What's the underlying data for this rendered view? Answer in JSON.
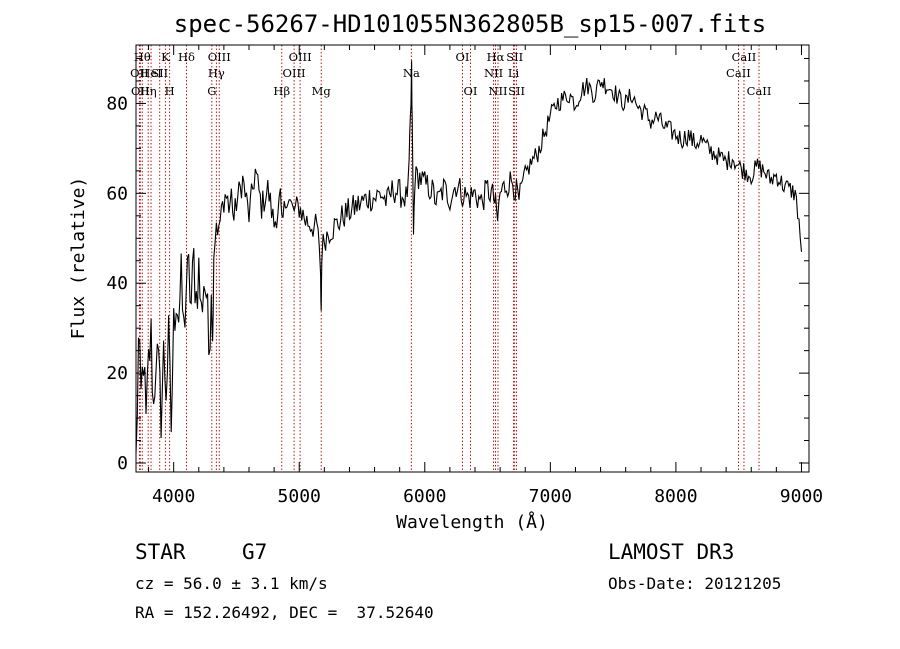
{
  "chart_data": {
    "type": "line",
    "title": "spec-56267-HD101055N362805B_sp15-007.fits",
    "xlabel": "Wavelength (Å)",
    "ylabel": "Flux (relative)",
    "xlim": [
      3700,
      9060
    ],
    "ylim": [
      -2,
      93
    ],
    "xticks": [
      4000,
      5000,
      6000,
      7000,
      8000,
      9000
    ],
    "yticks": [
      0,
      20,
      40,
      60,
      80
    ],
    "xtick_labels": [
      "4000",
      "5000",
      "6000",
      "7000",
      "8000",
      "9000"
    ],
    "ytick_labels": [
      "0",
      "20",
      "40",
      "60",
      "80"
    ],
    "series": [
      {
        "name": "spectrum",
        "x": [
          3700,
          3720,
          3740,
          3760,
          3780,
          3800,
          3820,
          3840,
          3860,
          3880,
          3900,
          3920,
          3940,
          3960,
          3980,
          4000,
          4020,
          4040,
          4060,
          4080,
          4100,
          4120,
          4140,
          4160,
          4180,
          4200,
          4220,
          4240,
          4260,
          4280,
          4300,
          4310,
          4320,
          4340,
          4360,
          4380,
          4400,
          4420,
          4440,
          4460,
          4480,
          4500,
          4550,
          4600,
          4650,
          4700,
          4750,
          4800,
          4850,
          4861,
          4900,
          4950,
          5000,
          5050,
          5100,
          5150,
          5170,
          5175,
          5180,
          5200,
          5250,
          5300,
          5350,
          5400,
          5450,
          5500,
          5550,
          5600,
          5650,
          5700,
          5750,
          5800,
          5850,
          5870,
          5880,
          5890,
          5895,
          5900,
          5910,
          5920,
          5950,
          6000,
          6050,
          6100,
          6150,
          6200,
          6250,
          6300,
          6350,
          6400,
          6450,
          6500,
          6550,
          6563,
          6580,
          6600,
          6650,
          6700,
          6750,
          6800,
          6850,
          6900,
          6950,
          7000,
          7050,
          7100,
          7150,
          7200,
          7250,
          7300,
          7350,
          7400,
          7450,
          7500,
          7550,
          7600,
          7650,
          7700,
          7750,
          7800,
          7850,
          7900,
          7950,
          8000,
          8050,
          8100,
          8150,
          8200,
          8250,
          8300,
          8350,
          8400,
          8450,
          8500,
          8550,
          8600,
          8650,
          8700,
          8750,
          8800,
          8850,
          8900,
          8950,
          8980,
          9000
        ],
        "y": [
          0,
          26,
          14,
          24,
          8,
          22,
          28,
          12,
          25,
          20,
          11,
          24,
          17,
          27,
          8,
          30,
          38,
          33,
          40,
          29,
          39,
          42,
          35,
          45,
          37,
          43,
          33,
          41,
          38,
          25,
          39,
          26,
          47,
          54,
          51,
          57,
          55,
          62,
          56,
          60,
          54,
          58,
          63,
          55,
          65,
          57,
          61,
          53,
          59,
          52,
          60,
          56,
          57,
          54,
          53,
          52,
          40,
          34,
          47,
          50,
          52,
          53,
          55,
          56,
          57,
          58,
          59,
          59,
          60,
          58,
          61,
          60,
          59,
          62,
          70,
          80,
          87,
          75,
          50,
          63,
          64,
          62,
          61,
          58,
          61,
          59,
          62,
          60,
          59,
          60,
          58,
          61,
          59,
          57,
          54,
          60,
          62,
          63,
          58,
          64,
          67,
          69,
          73,
          77,
          80,
          81,
          82,
          80,
          83,
          84,
          82,
          85,
          84,
          83,
          81,
          80,
          82,
          79,
          78,
          76,
          77,
          75,
          74,
          73,
          72,
          73,
          71,
          72,
          70,
          69,
          68,
          67,
          68,
          66,
          65,
          64,
          66,
          65,
          63,
          64,
          62,
          61,
          60,
          54,
          47
        ]
      }
    ],
    "lines": [
      {
        "x": 3727,
        "label": "OII",
        "row": 2
      },
      {
        "x": 3734,
        "label": "OII",
        "row": 3
      },
      {
        "x": 3750,
        "label": "Hθ",
        "row": 1
      },
      {
        "x": 3797,
        "label": "Hη",
        "row": 3
      },
      {
        "x": 3820,
        "label": "HeI",
        "row": 2
      },
      {
        "x": 3889,
        "label": "SII",
        "row": 2
      },
      {
        "x": 3934,
        "label": "K",
        "row": 1
      },
      {
        "x": 3968,
        "label": "H",
        "row": 3
      },
      {
        "x": 4102,
        "label": "Hδ",
        "row": 1
      },
      {
        "x": 4340,
        "label": "Hγ",
        "row": 2
      },
      {
        "x": 4304,
        "label": "G",
        "row": 3
      },
      {
        "x": 4363,
        "label": "OIII",
        "row": 1
      },
      {
        "x": 4861,
        "label": "Hβ",
        "row": 3
      },
      {
        "x": 4959,
        "label": "OIII",
        "row": 2
      },
      {
        "x": 5007,
        "label": "OIII",
        "row": 1
      },
      {
        "x": 5175,
        "label": "Mg",
        "row": 3
      },
      {
        "x": 5893,
        "label": "Na",
        "row": 2
      },
      {
        "x": 6300,
        "label": "OI",
        "row": 1
      },
      {
        "x": 6364,
        "label": "OI",
        "row": 3
      },
      {
        "x": 6548,
        "label": "NII",
        "row": 2
      },
      {
        "x": 6563,
        "label": "Hα",
        "row": 1
      },
      {
        "x": 6583,
        "label": "NII",
        "row": 3
      },
      {
        "x": 6707,
        "label": "Li",
        "row": 2
      },
      {
        "x": 6716,
        "label": "SII",
        "row": 1
      },
      {
        "x": 6731,
        "label": "SII",
        "row": 3
      },
      {
        "x": 8498,
        "label": "CaII",
        "row": 2
      },
      {
        "x": 8542,
        "label": "CaII",
        "row": 1
      },
      {
        "x": 8662,
        "label": "CaII",
        "row": 3
      }
    ]
  },
  "info": {
    "class": "STAR",
    "subclass": "G7",
    "survey": "LAMOST DR3",
    "cz": "cz = 56.0 ± 3.1 km/s",
    "obs_date": "Obs-Date: 20121205",
    "coords": "RA = 152.26492, DEC =  37.52640"
  },
  "colors": {
    "line_marker": "#b30000",
    "spectrum": "#000000"
  }
}
